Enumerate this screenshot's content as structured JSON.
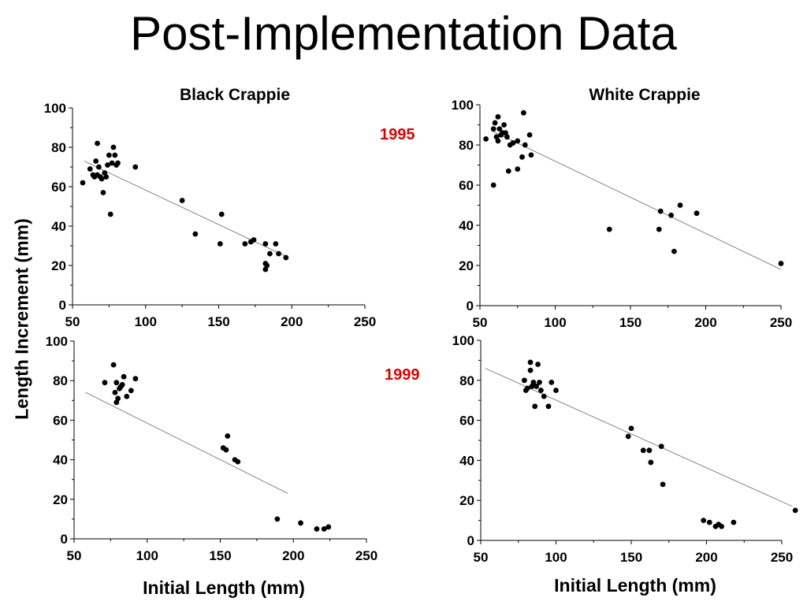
{
  "page": {
    "title": "Post-Implementation Data",
    "year_1995": "1995",
    "year_1999": "1999",
    "y_axis_label": "Length Increment (mm)",
    "x_axis_label_left": "Initial Length (mm)",
    "x_axis_label_right": "Initial Length (mm)",
    "year_color": "#e00000"
  },
  "chart_data": [
    {
      "type": "scatter",
      "title": "Black Crappie",
      "year": "1995",
      "xlim": [
        50,
        250
      ],
      "ylim": [
        0,
        100
      ],
      "xticks": [
        50,
        100,
        150,
        200,
        250
      ],
      "yticks": [
        0,
        20,
        40,
        60,
        80,
        100
      ],
      "points": [
        [
          57,
          62
        ],
        [
          62,
          69
        ],
        [
          64,
          66
        ],
        [
          65,
          65
        ],
        [
          66,
          73
        ],
        [
          67,
          82
        ],
        [
          67,
          66
        ],
        [
          68,
          70
        ],
        [
          69,
          65
        ],
        [
          70,
          64
        ],
        [
          71,
          57
        ],
        [
          72,
          67
        ],
        [
          73,
          65
        ],
        [
          74,
          71
        ],
        [
          75,
          76
        ],
        [
          76,
          46
        ],
        [
          77,
          72
        ],
        [
          78,
          80
        ],
        [
          79,
          76
        ],
        [
          80,
          71
        ],
        [
          81,
          72
        ],
        [
          93,
          70
        ],
        [
          125,
          53
        ],
        [
          134,
          36
        ],
        [
          151,
          31
        ],
        [
          152,
          46
        ],
        [
          168,
          31
        ],
        [
          172,
          32
        ],
        [
          174,
          33
        ],
        [
          182,
          21
        ],
        [
          182,
          31
        ],
        [
          182,
          18
        ],
        [
          183,
          20
        ],
        [
          185,
          26
        ],
        [
          189,
          31
        ],
        [
          191,
          26
        ],
        [
          196,
          24
        ]
      ],
      "trendline": [
        [
          58,
          73
        ],
        [
          195,
          25
        ]
      ]
    },
    {
      "type": "scatter",
      "title": "White Crappie",
      "year": "1995",
      "xlim": [
        50,
        250
      ],
      "ylim": [
        0,
        100
      ],
      "xticks": [
        50,
        100,
        150,
        200,
        250
      ],
      "yticks": [
        0,
        20,
        40,
        60,
        80,
        100
      ],
      "points": [
        [
          54,
          83
        ],
        [
          59,
          88
        ],
        [
          59,
          60
        ],
        [
          60,
          91
        ],
        [
          61,
          84
        ],
        [
          62,
          94
        ],
        [
          62,
          82
        ],
        [
          63,
          88
        ],
        [
          64,
          85
        ],
        [
          65,
          86
        ],
        [
          66,
          90
        ],
        [
          67,
          86
        ],
        [
          68,
          84
        ],
        [
          69,
          67
        ],
        [
          70,
          80
        ],
        [
          72,
          81
        ],
        [
          75,
          82
        ],
        [
          75,
          68
        ],
        [
          78,
          74
        ],
        [
          79,
          96
        ],
        [
          80,
          80
        ],
        [
          83,
          85
        ],
        [
          84,
          75
        ],
        [
          136,
          38
        ],
        [
          169,
          38
        ],
        [
          170,
          47
        ],
        [
          177,
          45
        ],
        [
          179,
          27
        ],
        [
          183,
          50
        ],
        [
          194,
          46
        ],
        [
          250,
          21
        ]
      ],
      "trendline": [
        [
          58,
          87
        ],
        [
          250,
          18
        ]
      ]
    },
    {
      "type": "scatter",
      "title": "",
      "year": "1999",
      "xlim": [
        50,
        250
      ],
      "ylim": [
        0,
        100
      ],
      "xticks": [
        50,
        100,
        150,
        200,
        250
      ],
      "yticks": [
        0,
        20,
        40,
        60,
        80,
        100
      ],
      "points": [
        [
          71,
          79
        ],
        [
          77,
          88
        ],
        [
          78,
          74
        ],
        [
          79,
          69
        ],
        [
          79,
          79
        ],
        [
          80,
          71
        ],
        [
          81,
          76
        ],
        [
          82,
          77
        ],
        [
          83,
          78
        ],
        [
          84,
          82
        ],
        [
          86,
          72
        ],
        [
          89,
          75
        ],
        [
          92,
          81
        ],
        [
          152,
          46
        ],
        [
          154,
          45
        ],
        [
          155,
          52
        ],
        [
          160,
          40
        ],
        [
          162,
          39
        ],
        [
          189,
          10
        ],
        [
          205,
          8
        ],
        [
          216,
          5
        ],
        [
          221,
          5
        ],
        [
          224,
          6
        ]
      ],
      "trendline": [
        [
          58,
          74
        ],
        [
          196,
          23
        ]
      ]
    },
    {
      "type": "scatter",
      "title": "",
      "year": "1999",
      "xlim": [
        50,
        250
      ],
      "ylim": [
        0,
        100
      ],
      "xticks": [
        50,
        100,
        150,
        200,
        250
      ],
      "yticks": [
        0,
        20,
        40,
        60,
        80,
        100
      ],
      "points": [
        [
          79,
          80
        ],
        [
          80,
          75
        ],
        [
          81,
          76
        ],
        [
          83,
          85
        ],
        [
          83,
          89
        ],
        [
          84,
          77
        ],
        [
          85,
          79
        ],
        [
          86,
          67
        ],
        [
          87,
          77
        ],
        [
          88,
          88
        ],
        [
          89,
          79
        ],
        [
          90,
          75
        ],
        [
          92,
          72
        ],
        [
          95,
          67
        ],
        [
          97,
          79
        ],
        [
          100,
          75
        ],
        [
          148,
          52
        ],
        [
          150,
          56
        ],
        [
          158,
          45
        ],
        [
          162,
          45
        ],
        [
          163,
          39
        ],
        [
          170,
          47
        ],
        [
          171,
          28
        ],
        [
          198,
          10
        ],
        [
          202,
          9
        ],
        [
          206,
          7
        ],
        [
          208,
          8
        ],
        [
          210,
          7
        ],
        [
          218,
          9
        ],
        [
          259,
          15
        ]
      ],
      "trendline": [
        [
          53,
          86
        ],
        [
          257,
          17
        ]
      ]
    }
  ]
}
